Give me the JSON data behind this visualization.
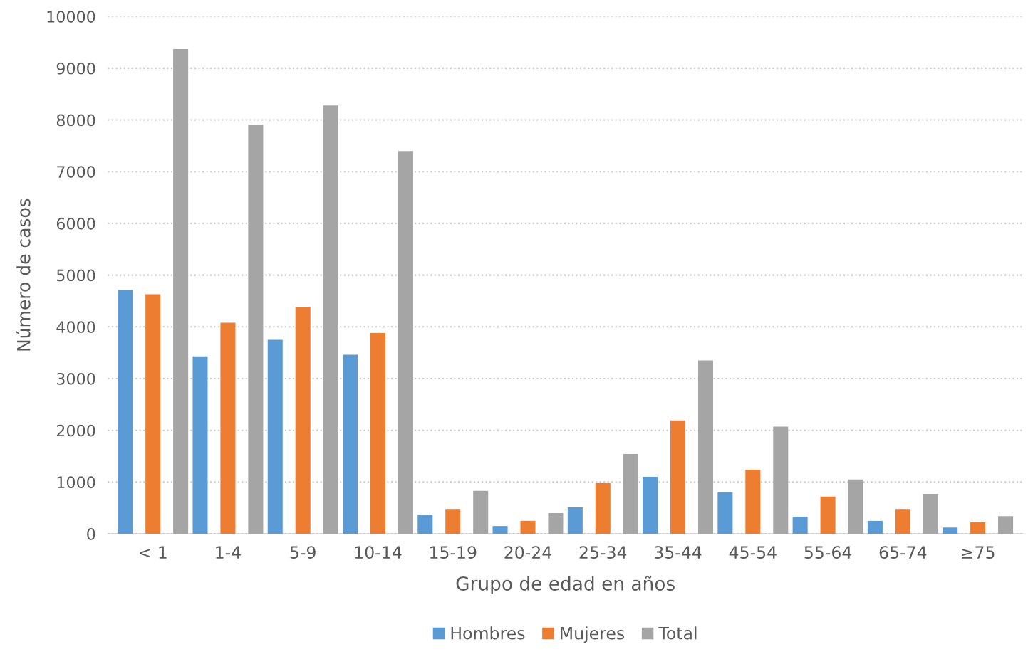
{
  "chart_data": {
    "type": "bar",
    "xlabel": "Grupo de edad en años",
    "ylabel": "Número de casos",
    "categories": [
      "< 1",
      "1-4",
      "5-9",
      "10-14",
      "15-19",
      "20-24",
      "25-34",
      "35-44",
      "45-54",
      "55-64",
      "65-74",
      "≥75"
    ],
    "series": [
      {
        "name": "Hombres",
        "color": "#5b9bd5",
        "values": [
          4720,
          3430,
          3750,
          3460,
          370,
          150,
          510,
          1100,
          800,
          330,
          250,
          120
        ]
      },
      {
        "name": "Mujeres",
        "color": "#ed7d31",
        "values": [
          4630,
          4080,
          4390,
          3880,
          480,
          250,
          980,
          2190,
          1240,
          720,
          480,
          220
        ]
      },
      {
        "name": "Total",
        "color": "#a5a5a5",
        "values": [
          9370,
          7910,
          8280,
          7400,
          830,
          400,
          1540,
          3350,
          2070,
          1050,
          770,
          340
        ]
      }
    ],
    "ylim": [
      0,
      10000
    ],
    "yticks": [
      0,
      1000,
      2000,
      3000,
      4000,
      5000,
      6000,
      7000,
      8000,
      9000,
      10000
    ],
    "grid": "y",
    "legend": "bottom"
  }
}
